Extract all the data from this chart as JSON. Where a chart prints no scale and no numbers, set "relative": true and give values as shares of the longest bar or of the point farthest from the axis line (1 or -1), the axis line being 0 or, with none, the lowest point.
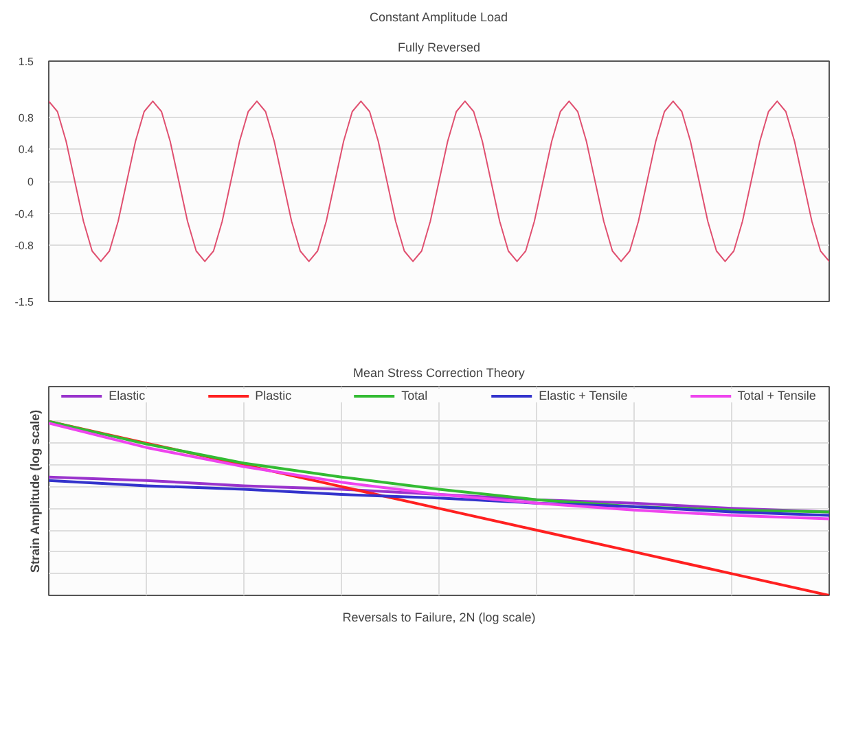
{
  "chart_data": [
    {
      "type": "line",
      "title": "Constant Amplitude Load",
      "subtitle": "Fully Reversed",
      "categories": [
        null,
        null,
        null,
        null,
        null,
        null,
        null,
        null,
        null,
        null,
        null,
        null,
        null,
        null,
        null,
        null,
        null,
        null,
        null,
        null,
        null,
        null,
        null,
        null,
        null,
        null,
        null,
        null,
        null,
        null,
        null,
        null,
        null,
        null,
        null,
        null,
        null,
        null,
        null,
        null,
        null,
        null,
        null,
        null,
        null,
        null,
        null,
        null,
        null,
        null,
        null,
        null,
        null,
        null,
        null,
        null,
        null,
        null,
        null,
        null,
        null,
        null,
        null,
        null,
        null,
        null,
        null,
        null,
        null,
        null,
        null,
        null,
        null,
        null,
        null,
        null,
        null,
        null,
        null,
        null,
        null,
        null,
        null,
        null,
        null,
        null,
        null,
        null,
        null,
        null,
        null
      ],
      "series": [
        {
          "color": "#e05070",
          "values": [
            1,
            0.87,
            0.5,
            0,
            -0.5,
            -0.87,
            -1,
            -0.87,
            -0.5,
            0,
            0.5,
            0.87,
            1,
            0.87,
            0.5,
            0,
            -0.5,
            -0.87,
            -1,
            -0.87,
            -0.5,
            0,
            0.5,
            0.87,
            1,
            0.87,
            0.5,
            0,
            -0.5,
            -0.87,
            -1,
            -0.87,
            -0.5,
            0,
            0.5,
            0.87,
            1,
            0.87,
            0.5,
            0,
            -0.5,
            -0.87,
            -1,
            -0.87,
            -0.5,
            0,
            0.5,
            0.87,
            1,
            0.87,
            0.5,
            0,
            -0.5,
            -0.87,
            -1,
            -0.87,
            -0.5,
            0,
            0.5,
            0.87,
            1,
            0.87,
            0.5,
            0,
            -0.5,
            -0.87,
            -1,
            -0.87,
            -0.5,
            0,
            0.5,
            0.87,
            1,
            0.87,
            0.5,
            0,
            -0.5,
            -0.87,
            -1,
            -0.87,
            -0.5,
            0,
            0.5,
            0.87,
            1,
            0.87,
            0.5,
            0,
            -0.5,
            -0.87,
            -1
          ]
        }
      ],
      "ylim": [
        -1.5,
        1.5
      ],
      "yticks": [
        -1.5,
        -0.8,
        -0.4,
        0,
        0.4,
        0.8,
        1.5
      ],
      "grid": "y",
      "tick_labels": "y"
    },
    {
      "type": "line",
      "title": "Mean Stress Correction Theory",
      "xlabel": "Reversals to Failure, 2N (log scale)",
      "ylabel": "Strain Amplitude (log scale)",
      "relative": true,
      "categories": [
        null,
        null,
        null,
        null,
        null,
        null,
        null,
        null,
        null
      ],
      "series": [
        {
          "name": "Elastic",
          "color": "#9933cc",
          "values": [
            0.68,
            0.66,
            0.63,
            0.61,
            0.58,
            0.55,
            0.53,
            0.5,
            0.48
          ]
        },
        {
          "name": "Plastic",
          "color": "#ff2020",
          "values": [
            1,
            0.875,
            0.75,
            0.625,
            0.5,
            0.375,
            0.25,
            0.125,
            0
          ]
        },
        {
          "name": "Total",
          "color": "#33bb33",
          "values": [
            1,
            0.87,
            0.76,
            0.68,
            0.61,
            0.55,
            0.51,
            0.49,
            0.48
          ]
        },
        {
          "name": "Elastic + Tensile",
          "color": "#3333cc",
          "values": [
            0.66,
            0.63,
            0.61,
            0.58,
            0.56,
            0.53,
            0.51,
            0.48,
            0.46
          ]
        },
        {
          "name": "Total + Tensile",
          "color": "#ee44ee",
          "values": [
            0.99,
            0.85,
            0.74,
            0.65,
            0.58,
            0.53,
            0.49,
            0.46,
            0.44
          ]
        }
      ],
      "grid": true,
      "legend": "top"
    }
  ]
}
